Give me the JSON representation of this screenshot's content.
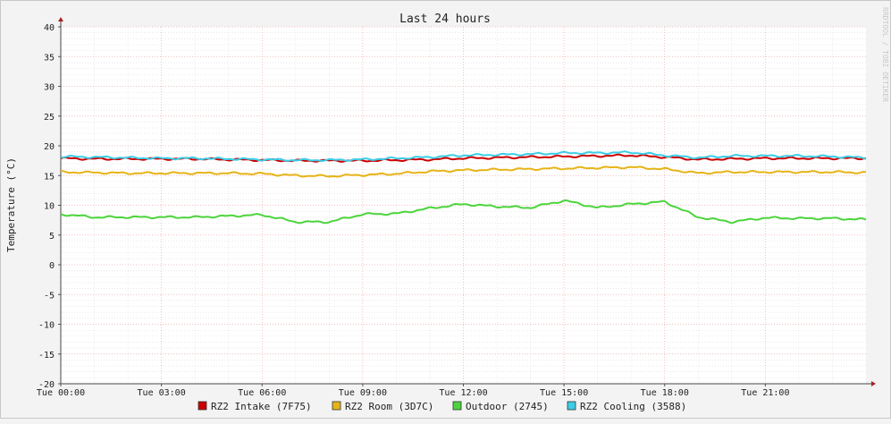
{
  "chart_data": {
    "type": "line",
    "title": "Last 24 hours",
    "ylabel": "Temperature (°C)",
    "xlabel": "",
    "ylim": [
      -20,
      40
    ],
    "yticks": [
      40,
      35,
      30,
      25,
      20,
      15,
      10,
      5,
      0,
      -5,
      -10,
      -15,
      -20
    ],
    "xticks": [
      "Tue 00:00",
      "Tue 03:00",
      "Tue 06:00",
      "Tue 09:00",
      "Tue 12:00",
      "Tue 15:00",
      "Tue 18:00",
      "Tue 21:00"
    ],
    "x_range_hours": [
      0,
      24
    ],
    "grid": true,
    "legend": "bottom",
    "watermark": "RRDTOOL / TOBI OETIKER",
    "series": [
      {
        "name": "RZ2 Intake (7F75)",
        "color": "#cc0000",
        "hours": [
          0,
          1,
          2,
          3,
          4,
          5,
          6,
          7,
          8,
          9,
          10,
          11,
          12,
          13,
          14,
          15,
          16,
          17,
          18,
          19,
          20,
          21,
          22,
          23,
          24
        ],
        "values": [
          17.9,
          17.8,
          17.8,
          17.8,
          17.8,
          17.7,
          17.6,
          17.5,
          17.5,
          17.5,
          17.6,
          17.7,
          17.9,
          18.0,
          18.1,
          18.2,
          18.3,
          18.4,
          18.1,
          17.7,
          17.8,
          17.9,
          17.9,
          17.9,
          17.9
        ]
      },
      {
        "name": "RZ2 Room (3D7C)",
        "color": "#e6b418",
        "hours": [
          0,
          1,
          2,
          3,
          4,
          5,
          6,
          7,
          8,
          9,
          10,
          11,
          12,
          13,
          14,
          15,
          16,
          17,
          18,
          19,
          20,
          21,
          22,
          23,
          24
        ],
        "values": [
          15.6,
          15.5,
          15.4,
          15.4,
          15.4,
          15.4,
          15.3,
          15.0,
          14.9,
          15.1,
          15.3,
          15.7,
          15.9,
          16.0,
          16.1,
          16.2,
          16.3,
          16.4,
          16.1,
          15.4,
          15.6,
          15.6,
          15.6,
          15.6,
          15.5
        ]
      },
      {
        "name": "Outdoor (2745)",
        "color": "#4cd43c",
        "hours": [
          0,
          1,
          2,
          3,
          4,
          5,
          6,
          7,
          8,
          9,
          10,
          11,
          12,
          13,
          14,
          15,
          16,
          17,
          18,
          19,
          20,
          21,
          22,
          23,
          24
        ],
        "values": [
          8.5,
          8.0,
          8.0,
          8.0,
          8.0,
          8.2,
          8.4,
          7.2,
          7.2,
          8.5,
          8.6,
          9.5,
          10.2,
          9.8,
          9.6,
          10.8,
          9.6,
          10.2,
          10.6,
          8.0,
          7.2,
          7.9,
          7.8,
          7.8,
          7.6
        ]
      },
      {
        "name": "RZ2 Cooling (3588)",
        "color": "#3ccde6",
        "hours": [
          0,
          1,
          2,
          3,
          4,
          5,
          6,
          7,
          8,
          9,
          10,
          11,
          12,
          13,
          14,
          15,
          16,
          17,
          18,
          19,
          20,
          21,
          22,
          23,
          24
        ],
        "values": [
          18.2,
          18.1,
          18.0,
          17.9,
          17.9,
          17.8,
          17.7,
          17.6,
          17.6,
          17.7,
          17.9,
          18.1,
          18.4,
          18.5,
          18.6,
          18.8,
          18.8,
          18.9,
          18.4,
          18.0,
          18.3,
          18.3,
          18.3,
          18.2,
          18.0
        ]
      }
    ]
  }
}
